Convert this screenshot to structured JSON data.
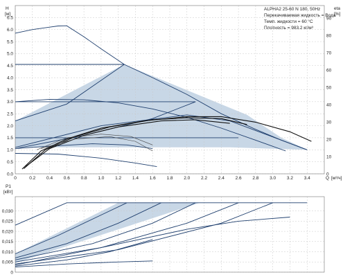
{
  "title": "ALPHA2 25-60 N 180, 50Hz",
  "info_lines": [
    "Перекачиваемая жидкость = Вода",
    "Темп. жидкости = 60 °C",
    "Плотность = 983.2 кг/м³"
  ],
  "colors": {
    "curve": "#1f3f6e",
    "region": "#c8d7e6",
    "eta": "#111111"
  },
  "chart_data": [
    {
      "type": "line",
      "title": "",
      "ylabel": "H",
      "yunit": "[м]",
      "y2label": "eta",
      "y2unit": "[%]",
      "xlabel": "Q",
      "xunit": "[м³/ч]",
      "xlim": [
        0,
        3.6
      ],
      "ylim": [
        0,
        7.0
      ],
      "y2lim": [
        0,
        100
      ],
      "x_ticks": [
        "0",
        "0.2",
        "0.4",
        "0.6",
        "0.8",
        "1.0",
        "1.2",
        "1.4",
        "1.6",
        "1.8",
        "2.0",
        "2.2",
        "2.4",
        "2.6",
        "2.8",
        "3.0",
        "3.2",
        "3.4"
      ],
      "y_ticks": [
        "0.0",
        "0.5",
        "1.0",
        "1.5",
        "2.0",
        "2.5",
        "3.0",
        "3.5",
        "4.0",
        "4.5",
        "5.0",
        "5.5",
        "6.0",
        "6.5"
      ],
      "y2_ticks": [
        "0",
        "10",
        "20",
        "30",
        "40",
        "50",
        "60",
        "70",
        "80",
        "90"
      ],
      "grid": true,
      "operating_region": [
        [
          0,
          2.2
        ],
        [
          1.27,
          4.55
        ],
        [
          2.7,
          2.45
        ],
        [
          3.1,
          1.5
        ],
        [
          3.4,
          1.0
        ],
        [
          2.5,
          1.1
        ],
        [
          0,
          1.1
        ]
      ],
      "series": [
        {
          "values": [
            [
              0,
              5.85
            ],
            [
              0.2,
              6.0
            ],
            [
              0.4,
              6.1
            ],
            [
              0.5,
              6.15
            ],
            [
              0.6,
              6.16
            ],
            [
              0.8,
              5.7
            ],
            [
              1.0,
              5.2
            ],
            [
              1.27,
              4.55
            ],
            [
              1.6,
              4.0
            ],
            [
              2.0,
              3.3
            ],
            [
              2.4,
              2.5
            ],
            [
              2.8,
              1.85
            ],
            [
              3.1,
              1.4
            ],
            [
              3.4,
              1.0
            ]
          ]
        },
        {
          "values": [
            [
              0,
              4.55
            ],
            [
              1.27,
              4.55
            ]
          ]
        },
        {
          "values": [
            [
              0,
              3.0
            ],
            [
              2.1,
              3.0
            ]
          ]
        },
        {
          "values": [
            [
              0,
              2.2
            ],
            [
              0.6,
              2.9
            ],
            [
              1.27,
              4.55
            ]
          ]
        },
        {
          "values": [
            [
              0,
              3.0
            ],
            [
              0.4,
              3.1
            ],
            [
              0.8,
              3.08
            ],
            [
              1.2,
              2.95
            ],
            [
              1.6,
              2.7
            ],
            [
              2.0,
              2.35
            ],
            [
              2.4,
              1.9
            ],
            [
              2.8,
              1.4
            ],
            [
              3.15,
              0.95
            ]
          ]
        },
        {
          "values": [
            [
              0,
              1.5
            ],
            [
              2.6,
              1.5
            ]
          ]
        },
        {
          "values": [
            [
              0,
              1.05
            ],
            [
              0.4,
              1.15
            ],
            [
              0.9,
              1.25
            ],
            [
              1.3,
              1.2
            ],
            [
              1.6,
              1.05
            ]
          ]
        },
        {
          "values": [
            [
              0,
              0.85
            ],
            [
              0.5,
              0.82
            ],
            [
              1.0,
              0.65
            ],
            [
              1.4,
              0.45
            ],
            [
              1.65,
              0.3
            ]
          ]
        },
        {
          "values": [
            [
              0,
              1.05
            ],
            [
              0.8,
              1.6
            ],
            [
              1.6,
              2.3
            ],
            [
              2.1,
              3.0
            ]
          ]
        },
        {
          "values": [
            [
              0,
              1.1
            ],
            [
              1.0,
              2.0
            ],
            [
              2.0,
              2.45
            ],
            [
              2.5,
              2.2
            ],
            [
              3.4,
              1.0
            ]
          ]
        }
      ],
      "efficiency": [
        [
          [
            0.08,
            0.2
          ],
          [
            0.3,
            0.95
          ],
          [
            0.6,
            1.45
          ],
          [
            1.0,
            1.9
          ],
          [
            1.5,
            2.2
          ],
          [
            2.0,
            2.38
          ],
          [
            2.4,
            2.38
          ],
          [
            2.8,
            2.15
          ],
          [
            3.2,
            1.75
          ],
          [
            3.45,
            1.35
          ]
        ],
        [
          [
            0.1,
            0.22
          ],
          [
            0.35,
            1.0
          ],
          [
            0.7,
            1.55
          ],
          [
            1.1,
            1.95
          ],
          [
            1.6,
            2.25
          ],
          [
            2.0,
            2.33
          ],
          [
            2.4,
            2.3
          ],
          [
            2.7,
            2.05
          ]
        ],
        [
          [
            0.12,
            0.3
          ],
          [
            0.4,
            1.05
          ],
          [
            0.8,
            1.6
          ],
          [
            1.2,
            1.95
          ],
          [
            1.7,
            2.2
          ],
          [
            2.1,
            2.25
          ],
          [
            2.5,
            2.1
          ]
        ],
        [
          [
            0.25,
            1.0
          ],
          [
            0.6,
            1.5
          ],
          [
            1.0,
            1.65
          ],
          [
            1.35,
            1.55
          ],
          [
            1.6,
            1.2
          ]
        ],
        [
          [
            0.3,
            1.05
          ],
          [
            0.7,
            1.45
          ],
          [
            1.1,
            1.55
          ],
          [
            1.4,
            1.35
          ],
          [
            1.6,
            0.95
          ]
        ]
      ]
    },
    {
      "type": "line",
      "title": "",
      "ylabel": "P1",
      "yunit": "[кВт]",
      "xlim": [
        0,
        3.6
      ],
      "ylim": [
        0,
        0.037
      ],
      "y_ticks": [
        "0",
        "0,005",
        "0,010",
        "0,015",
        "0,020",
        "0,025",
        "0,030"
      ],
      "grid": true,
      "operating_region": [
        [
          0.0,
          0.009
        ],
        [
          1.2,
          0.034
        ],
        [
          2.15,
          0.034
        ],
        [
          0.0,
          0.0045
        ]
      ],
      "series": [
        {
          "values": [
            [
              0.0,
              0.023
            ],
            [
              0.6,
              0.034
            ],
            [
              3.4,
              0.034
            ]
          ]
        },
        {
          "values": [
            [
              0.0,
              0.009
            ],
            [
              0.5,
              0.018
            ],
            [
              1.0,
              0.028
            ],
            [
              1.3,
              0.034
            ]
          ]
        },
        {
          "values": [
            [
              0.0,
              0.007
            ],
            [
              0.6,
              0.014
            ],
            [
              1.2,
              0.024
            ],
            [
              1.7,
              0.034
            ]
          ]
        },
        {
          "values": [
            [
              0.0,
              0.006
            ],
            [
              0.9,
              0.014
            ],
            [
              1.6,
              0.024
            ],
            [
              2.1,
              0.034
            ]
          ]
        },
        {
          "values": [
            [
              0.0,
              0.005
            ],
            [
              1.0,
              0.012
            ],
            [
              2.0,
              0.024
            ],
            [
              2.6,
              0.034
            ]
          ]
        },
        {
          "values": [
            [
              0.0,
              0.004
            ],
            [
              1.2,
              0.011
            ],
            [
              2.4,
              0.024
            ],
            [
              3.0,
              0.034
            ]
          ]
        },
        {
          "values": [
            [
              0.0,
              0.0035
            ],
            [
              1.0,
              0.012
            ],
            [
              2.0,
              0.021
            ],
            [
              2.6,
              0.025
            ],
            [
              3.2,
              0.027
            ]
          ]
        },
        {
          "values": [
            [
              0.0,
              0.003
            ],
            [
              0.6,
              0.006
            ],
            [
              1.1,
              0.01
            ],
            [
              1.6,
              0.016
            ]
          ]
        },
        {
          "values": [
            [
              0.0,
              0.0025
            ],
            [
              0.6,
              0.004
            ],
            [
              1.2,
              0.005
            ],
            [
              1.6,
              0.0055
            ]
          ]
        }
      ]
    }
  ]
}
